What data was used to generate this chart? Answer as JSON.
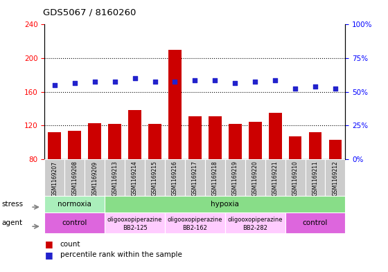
{
  "title": "GDS5067 / 8160260",
  "samples": [
    "GSM1169207",
    "GSM1169208",
    "GSM1169209",
    "GSM1169213",
    "GSM1169214",
    "GSM1169215",
    "GSM1169216",
    "GSM1169217",
    "GSM1169218",
    "GSM1169219",
    "GSM1169220",
    "GSM1169221",
    "GSM1169210",
    "GSM1169211",
    "GSM1169212"
  ],
  "counts": [
    112,
    114,
    123,
    122,
    138,
    122,
    210,
    131,
    131,
    122,
    124,
    135,
    107,
    112,
    103
  ],
  "percentiles": [
    168,
    170,
    172,
    172,
    176,
    172,
    172,
    174,
    174,
    170,
    172,
    174,
    164,
    166,
    164
  ],
  "ylim_left": [
    80,
    240
  ],
  "ylim_right": [
    0,
    100
  ],
  "yticks_left": [
    80,
    120,
    160,
    200,
    240
  ],
  "yticks_right": [
    0,
    25,
    50,
    75,
    100
  ],
  "bar_color": "#cc0000",
  "dot_color": "#2222cc",
  "stress_groups": [
    {
      "label": "normoxia",
      "start": 0,
      "end": 3,
      "color": "#aaeebb"
    },
    {
      "label": "hypoxia",
      "start": 3,
      "end": 15,
      "color": "#88dd88"
    }
  ],
  "agent_groups": [
    {
      "label": "control",
      "line2": "",
      "start": 0,
      "end": 3,
      "color": "#dd66dd"
    },
    {
      "label": "oligooxopiperazine",
      "line2": "BB2-125",
      "start": 3,
      "end": 6,
      "color": "#ffccff"
    },
    {
      "label": "oligooxopiperazine",
      "line2": "BB2-162",
      "start": 6,
      "end": 9,
      "color": "#ffccff"
    },
    {
      "label": "oligooxopiperazine",
      "line2": "BB2-282",
      "start": 9,
      "end": 12,
      "color": "#ffccff"
    },
    {
      "label": "control",
      "line2": "",
      "start": 12,
      "end": 15,
      "color": "#dd66dd"
    }
  ]
}
